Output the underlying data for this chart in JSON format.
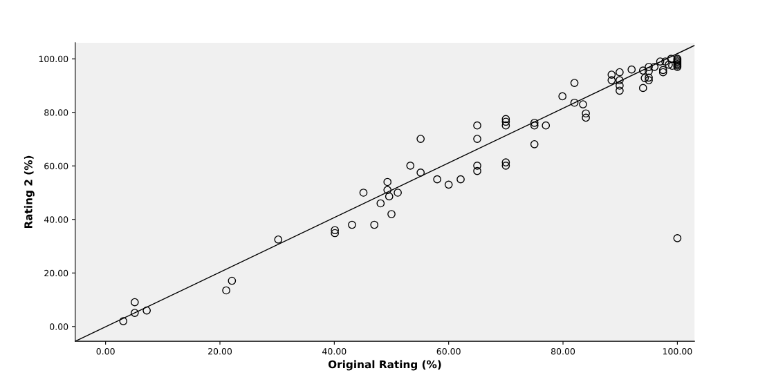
{
  "chart_data": {
    "type": "scatter",
    "xlabel": "Original Rating (%)",
    "ylabel": "Rating 2 (%)",
    "grid": false,
    "legend": false,
    "xlim": [
      -5.3,
      103
    ],
    "ylim": [
      -5.5,
      106
    ],
    "xticks": [
      {
        "value": 0,
        "label": "0.00"
      },
      {
        "value": 20,
        "label": "20.00"
      },
      {
        "value": 40,
        "label": "40.00"
      },
      {
        "value": 60,
        "label": "60.00"
      },
      {
        "value": 80,
        "label": "80.00"
      },
      {
        "value": 100,
        "label": "100.00"
      }
    ],
    "yticks": [
      {
        "value": 0,
        "label": "0.00"
      },
      {
        "value": 20,
        "label": "20.00"
      },
      {
        "value": 40,
        "label": "40.00"
      },
      {
        "value": 60,
        "label": "60.00"
      },
      {
        "value": 80,
        "label": "80.00"
      },
      {
        "value": 100,
        "label": "100.00"
      }
    ],
    "series": [
      {
        "marker": "circle",
        "color": "#000000",
        "x": [
          3.1,
          5.1,
          5.1,
          7.2,
          21.1,
          22.1,
          30.2,
          40.1,
          40.1,
          43.1,
          45.1,
          47.0,
          49.3,
          49.3,
          49.6,
          51.1,
          48.1,
          50.0,
          55.1,
          53.3,
          55.1,
          58.0,
          60.0,
          62.1,
          65.0,
          65.0,
          65.0,
          65.0,
          70.0,
          70.0,
          70.0,
          70.0,
          70.0,
          75.0,
          75.0,
          75.0,
          77.0,
          79.9,
          82.0,
          82.0,
          83.5,
          84.0,
          84.0,
          88.5,
          88.5,
          89.9,
          89.9,
          89.9,
          89.9,
          92.0,
          94.0,
          94.0,
          94.3,
          95.0,
          95.0,
          95.0,
          95.0,
          96.0,
          97.0,
          97.5,
          97.5,
          97.9,
          98.5,
          98.9,
          99.1,
          100,
          100,
          100,
          100,
          100,
          100,
          100,
          100
        ],
        "values": [
          2.0,
          9.1,
          5.1,
          6.0,
          13.5,
          17.1,
          32.5,
          36.0,
          34.9,
          38.0,
          50.0,
          38.0,
          54.0,
          51.0,
          48.6,
          50.0,
          46.0,
          42.0,
          70.1,
          60.1,
          57.5,
          55.0,
          53.0,
          55.0,
          75.1,
          70.1,
          60.1,
          58.1,
          77.5,
          76.5,
          75.1,
          61.3,
          60.1,
          76.1,
          75.1,
          68.1,
          75.1,
          86.0,
          91.0,
          83.6,
          83.0,
          79.6,
          78.0,
          94.1,
          92.0,
          95.0,
          92.0,
          90.0,
          88.1,
          96.0,
          95.6,
          89.1,
          92.8,
          93.0,
          92.0,
          97.0,
          95.4,
          97.0,
          99.0,
          95.8,
          95.0,
          99.0,
          97.8,
          100.0,
          97.4,
          100.0,
          99.5,
          99.0,
          98.5,
          98.0,
          97.5,
          97.0,
          33.0
        ]
      },
      {
        "type": "line",
        "marker": "none",
        "color": "#000000",
        "x": [
          -5.3,
          103
        ],
        "values": [
          -5.5,
          105
        ]
      }
    ]
  }
}
